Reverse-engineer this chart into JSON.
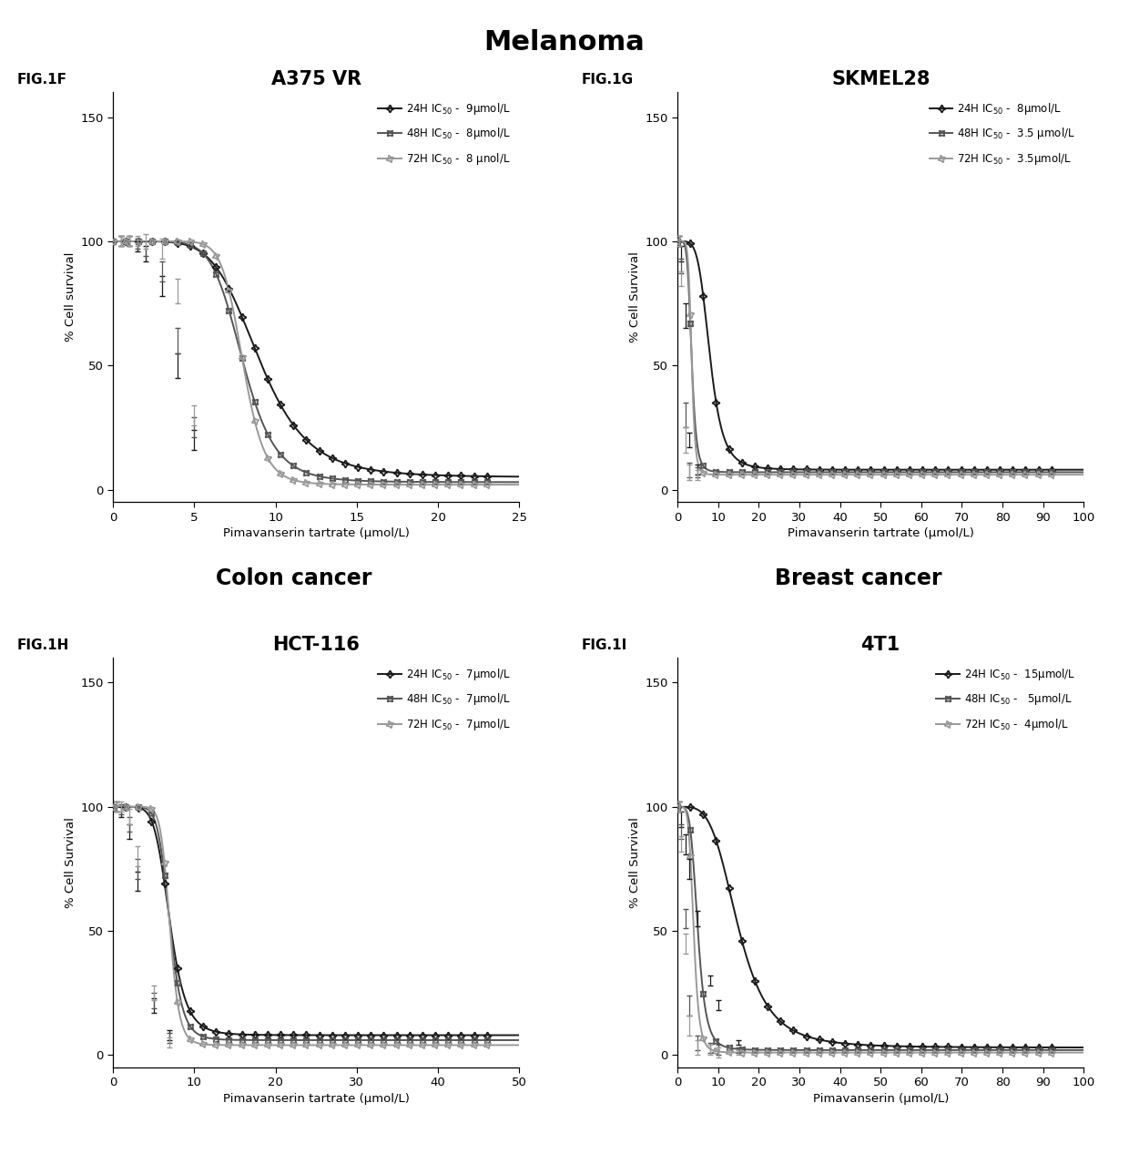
{
  "title": "Melanoma",
  "section_titles": [
    "Colon cancer",
    "Breast cancer"
  ],
  "panels": [
    {
      "fig_label": "FIG.1F",
      "title": "A375 VR",
      "xlabel": "Pimavanserin tartrate (μmol/L)",
      "ylabel": "% Cell survival",
      "xlim": [
        0,
        25
      ],
      "xticks": [
        0,
        5,
        10,
        15,
        20,
        25
      ],
      "ylim": [
        -5,
        160
      ],
      "yticks": [
        0,
        50,
        100,
        150
      ],
      "legend": [
        "24H IC$_{50}$ -  9μmol/L",
        "48H IC$_{50}$ -  8μmol/L",
        "72H IC$_{50}$ -  8 μnol/L"
      ],
      "ic50": [
        9,
        8,
        8
      ],
      "hill": [
        6,
        8,
        12
      ],
      "baseline": [
        100,
        100,
        100
      ],
      "floor": [
        5,
        3,
        2
      ],
      "x_end": 25,
      "err_x": [
        0.5,
        1.0,
        1.5,
        2.0,
        3.0,
        4.0,
        5.0
      ],
      "err_vals": [
        [
          100,
          100,
          98,
          95,
          82,
          50,
          20
        ],
        [
          100,
          100,
          99,
          97,
          88,
          60,
          25
        ],
        [
          100,
          100,
          100,
          100,
          97,
          80,
          30
        ]
      ],
      "err_sd": [
        2,
        2,
        2,
        3,
        4,
        5,
        4
      ]
    },
    {
      "fig_label": "FIG.1G",
      "title": "SKMEL28",
      "xlabel": "Pimavanserin tartrate (μmol/L)",
      "ylabel": "% Cell Survival",
      "xlim": [
        0,
        100
      ],
      "xticks": [
        0,
        10,
        20,
        30,
        40,
        50,
        60,
        70,
        80,
        90,
        100
      ],
      "ylim": [
        -5,
        160
      ],
      "yticks": [
        0,
        50,
        100,
        150
      ],
      "legend": [
        "24H IC$_{50}$ -  8μmol/L",
        "48H IC$_{50}$ -  3.5 μmol/L",
        "72H IC$_{50}$ -  3.5μmol/L"
      ],
      "ic50": [
        8,
        3.5,
        3.5
      ],
      "hill": [
        5,
        6,
        8
      ],
      "baseline": [
        100,
        100,
        100
      ],
      "floor": [
        8,
        7,
        6
      ],
      "x_end": 100,
      "err_x": [
        0.5,
        1.0,
        2.0,
        3.0,
        5.0
      ],
      "err_vals": [
        [
          100,
          95,
          70,
          20,
          8
        ],
        [
          100,
          90,
          30,
          8,
          7
        ],
        [
          100,
          85,
          20,
          7,
          6
        ]
      ],
      "err_sd": [
        2,
        3,
        5,
        3,
        2
      ]
    },
    {
      "fig_label": "FIG.1H",
      "title": "HCT-116",
      "section": "Colon cancer",
      "xlabel": "Pimavanserin tartrate (μmol/L)",
      "ylabel": "% Cell Survival",
      "xlim": [
        0,
        50
      ],
      "xticks": [
        0,
        10,
        20,
        30,
        40,
        50
      ],
      "ylim": [
        -5,
        160
      ],
      "yticks": [
        0,
        50,
        100,
        150
      ],
      "legend": [
        "24H IC$_{50}$ -  7μmol/L",
        "48H IC$_{50}$ -  7μmol/L",
        "72H IC$_{50}$ -  7μmol/L"
      ],
      "ic50": [
        7,
        7,
        7
      ],
      "hill": [
        7,
        9,
        12
      ],
      "baseline": [
        100,
        100,
        100
      ],
      "floor": [
        8,
        6,
        4
      ],
      "x_end": 50,
      "err_x": [
        0.5,
        1.0,
        2.0,
        3.0,
        5.0,
        7.0
      ],
      "err_vals": [
        [
          100,
          98,
          90,
          70,
          20,
          8
        ],
        [
          100,
          99,
          93,
          75,
          22,
          7
        ],
        [
          100,
          100,
          96,
          80,
          25,
          5
        ]
      ],
      "err_sd": [
        2,
        2,
        3,
        4,
        3,
        2
      ]
    },
    {
      "fig_label": "FIG.1I",
      "title": "4T1",
      "section": "Breast cancer",
      "xlabel": "Pimavanserin (μmol/L)",
      "ylabel": "% Cell Survival",
      "xlim": [
        0,
        100
      ],
      "xticks": [
        0,
        10,
        20,
        30,
        40,
        50,
        60,
        70,
        80,
        90,
        100
      ],
      "ylim": [
        -5,
        160
      ],
      "yticks": [
        0,
        50,
        100,
        150
      ],
      "legend": [
        "24H IC$_{50}$ -  15μmol/L",
        "48H IC$_{50}$ -   5μmol/L",
        "72H IC$_{50}$ -  4μmol/L"
      ],
      "ic50": [
        15,
        5,
        4
      ],
      "hill": [
        4,
        5,
        6
      ],
      "baseline": [
        100,
        100,
        100
      ],
      "floor": [
        3,
        2,
        1
      ],
      "x_end": 100,
      "err_x": [
        0.5,
        1.0,
        2.0,
        3.0,
        5.0,
        8.0,
        10.0,
        15.0
      ],
      "err_vals": [
        [
          100,
          95,
          85,
          75,
          55,
          30,
          20,
          5
        ],
        [
          100,
          90,
          55,
          20,
          5,
          3,
          2,
          2
        ],
        [
          100,
          85,
          45,
          12,
          3,
          2,
          1,
          1
        ]
      ],
      "err_sd": [
        2,
        3,
        4,
        4,
        3,
        2,
        2,
        1
      ]
    }
  ],
  "line_colors": [
    "#1a1a1a",
    "#555555",
    "#999999"
  ],
  "background_color": "#ffffff",
  "text_color": "#000000"
}
